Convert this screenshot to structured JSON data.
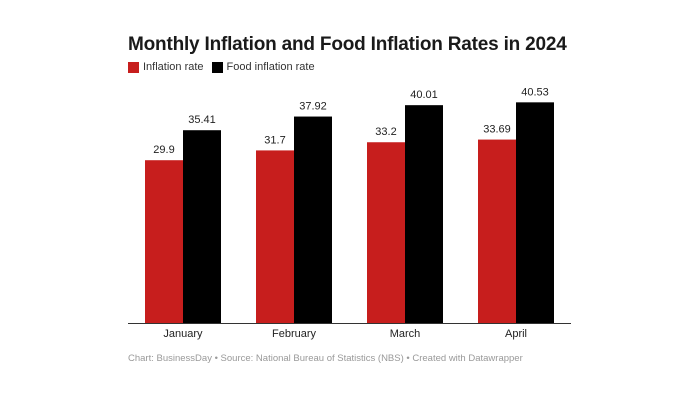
{
  "chart_data": {
    "type": "bar",
    "title": "Monthly Inflation and Food Inflation Rates in 2024",
    "categories": [
      "January",
      "February",
      "March",
      "April"
    ],
    "series": [
      {
        "name": "Inflation rate",
        "color": "#c71e1d",
        "values": [
          29.9,
          31.7,
          33.2,
          33.69
        ],
        "labels": [
          "29.9",
          "31.7",
          "33.2",
          "33.69"
        ]
      },
      {
        "name": "Food inflation rate",
        "color": "#000000",
        "values": [
          35.41,
          37.92,
          40.01,
          40.53
        ],
        "labels": [
          "35.41",
          "37.92",
          "40.01",
          "40.53"
        ]
      }
    ],
    "ylim": [
      0,
      45
    ],
    "grid": false,
    "legend_position": "top-left",
    "footer": "Chart: BusinessDay • Source: National Bureau of Statistics (NBS) • Created with Datawrapper"
  }
}
